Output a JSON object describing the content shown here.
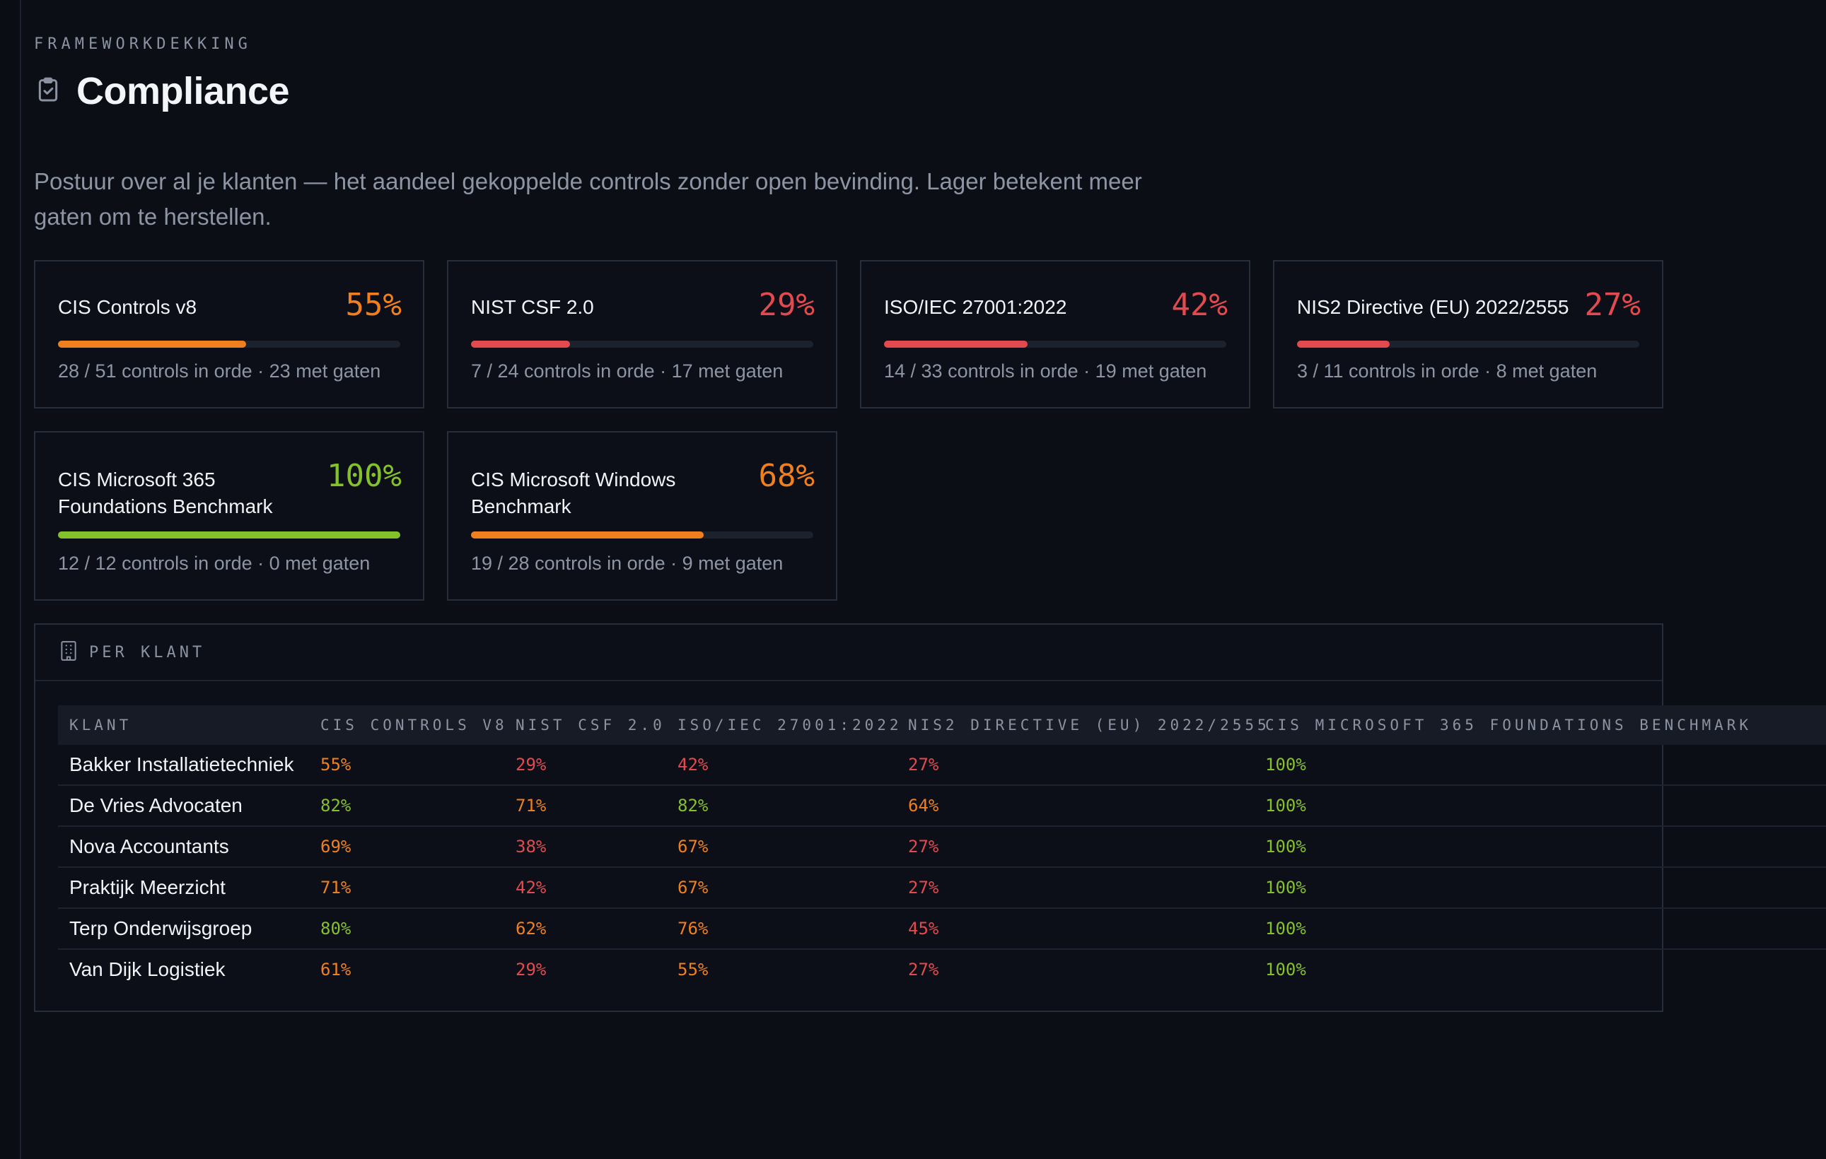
{
  "header": {
    "eyebrow": "FRAMEWORKDEKKING",
    "title": "Compliance",
    "title_icon": "clipboard-check-icon",
    "description": "Postuur over al je klanten — het aandeel gekoppelde controls zonder open bevinding. Lager betekent meer gaten om te herstellen."
  },
  "colors": {
    "green": "#84c12a",
    "orange": "#f0801f",
    "red": "#e34a4f",
    "track": "#1b212d"
  },
  "frameworks": [
    {
      "name": "CIS Controls v8",
      "pct": "55%",
      "level": 0.55,
      "status": "orange",
      "stats": "28 / 51 controls in orde · 23 met gaten"
    },
    {
      "name": "NIST CSF 2.0",
      "pct": "29%",
      "level": 0.29,
      "status": "red",
      "stats": "7 / 24 controls in orde · 17 met gaten"
    },
    {
      "name": "ISO/IEC 27001:2022",
      "pct": "42%",
      "level": 0.42,
      "status": "red",
      "stats": "14 / 33 controls in orde · 19 met gaten"
    },
    {
      "name": "NIS2 Directive (EU) 2022/2555",
      "pct": "27%",
      "level": 0.27,
      "status": "red",
      "stats": "3 / 11 controls in orde · 8 met gaten"
    },
    {
      "name": "CIS Microsoft 365 Foundations Benchmark",
      "pct": "100%",
      "level": 1.0,
      "status": "green",
      "stats": "12 / 12 controls in orde · 0 met gaten"
    },
    {
      "name": "CIS Microsoft Windows Benchmark",
      "pct": "68%",
      "level": 0.68,
      "status": "orange",
      "stats": "19 / 28 controls in orde · 9 met gaten"
    }
  ],
  "per_client": {
    "label": "PER KLANT",
    "icon": "building-icon",
    "columns": [
      "KLANT",
      "CIS CONTROLS V8",
      "NIST CSF 2.0",
      "ISO/IEC 27001:2022",
      "NIS2 DIRECTIVE (EU) 2022/2555",
      "CIS MICROSOFT 365 FOUNDATIONS BENCHMARK"
    ],
    "rows": [
      {
        "client": "Bakker Installatietechniek",
        "values": [
          {
            "v": "55%",
            "s": "orange"
          },
          {
            "v": "29%",
            "s": "red"
          },
          {
            "v": "42%",
            "s": "red"
          },
          {
            "v": "27%",
            "s": "red"
          },
          {
            "v": "100%",
            "s": "green"
          }
        ]
      },
      {
        "client": "De Vries Advocaten",
        "values": [
          {
            "v": "82%",
            "s": "green"
          },
          {
            "v": "71%",
            "s": "orange"
          },
          {
            "v": "82%",
            "s": "green"
          },
          {
            "v": "64%",
            "s": "orange"
          },
          {
            "v": "100%",
            "s": "green"
          }
        ]
      },
      {
        "client": "Nova Accountants",
        "values": [
          {
            "v": "69%",
            "s": "orange"
          },
          {
            "v": "38%",
            "s": "red"
          },
          {
            "v": "67%",
            "s": "orange"
          },
          {
            "v": "27%",
            "s": "red"
          },
          {
            "v": "100%",
            "s": "green"
          }
        ]
      },
      {
        "client": "Praktijk Meerzicht",
        "values": [
          {
            "v": "71%",
            "s": "orange"
          },
          {
            "v": "42%",
            "s": "red"
          },
          {
            "v": "67%",
            "s": "orange"
          },
          {
            "v": "27%",
            "s": "red"
          },
          {
            "v": "100%",
            "s": "green"
          }
        ]
      },
      {
        "client": "Terp Onderwijsgroep",
        "values": [
          {
            "v": "80%",
            "s": "green"
          },
          {
            "v": "62%",
            "s": "orange"
          },
          {
            "v": "76%",
            "s": "orange"
          },
          {
            "v": "45%",
            "s": "red"
          },
          {
            "v": "100%",
            "s": "green"
          }
        ]
      },
      {
        "client": "Van Dijk Logistiek",
        "values": [
          {
            "v": "61%",
            "s": "orange"
          },
          {
            "v": "29%",
            "s": "red"
          },
          {
            "v": "55%",
            "s": "orange"
          },
          {
            "v": "27%",
            "s": "red"
          },
          {
            "v": "100%",
            "s": "green"
          }
        ]
      }
    ]
  }
}
